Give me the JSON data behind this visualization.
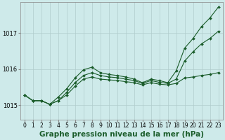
{
  "background_color": "#ceeaea",
  "grid_color": "#b0cccc",
  "line_color": "#1a5c2a",
  "title": "Graphe pression niveau de la mer (hPa)",
  "xlim": [
    -0.5,
    23.5
  ],
  "ylim": [
    1014.6,
    1017.85
  ],
  "yticks": [
    1015,
    1016,
    1017
  ],
  "xticks": [
    0,
    1,
    2,
    3,
    4,
    5,
    6,
    7,
    8,
    9,
    10,
    11,
    12,
    13,
    14,
    15,
    16,
    17,
    18,
    19,
    20,
    21,
    22,
    23
  ],
  "series1": [
    1015.28,
    1015.12,
    1015.12,
    1015.02,
    1015.12,
    1015.28,
    1015.52,
    1015.72,
    1015.78,
    1015.72,
    1015.7,
    1015.68,
    1015.65,
    1015.62,
    1015.56,
    1015.62,
    1015.58,
    1015.56,
    1015.6,
    1015.75,
    1015.78,
    1015.82,
    1015.85,
    1015.9
  ],
  "series2": [
    1015.28,
    1015.12,
    1015.12,
    1015.02,
    1015.12,
    1015.35,
    1015.62,
    1015.82,
    1015.9,
    1015.82,
    1015.78,
    1015.76,
    1015.72,
    1015.68,
    1015.6,
    1015.68,
    1015.63,
    1015.6,
    1015.72,
    1016.22,
    1016.48,
    1016.7,
    1016.85,
    1017.05
  ],
  "series3": [
    1015.28,
    1015.12,
    1015.12,
    1015.02,
    1015.22,
    1015.45,
    1015.75,
    1015.98,
    1016.05,
    1015.9,
    1015.85,
    1015.82,
    1015.78,
    1015.72,
    1015.62,
    1015.72,
    1015.68,
    1015.62,
    1015.95,
    1016.58,
    1016.85,
    1017.18,
    1017.42,
    1017.72
  ],
  "title_fontsize": 7.5,
  "tick_fontsize": 6.0
}
